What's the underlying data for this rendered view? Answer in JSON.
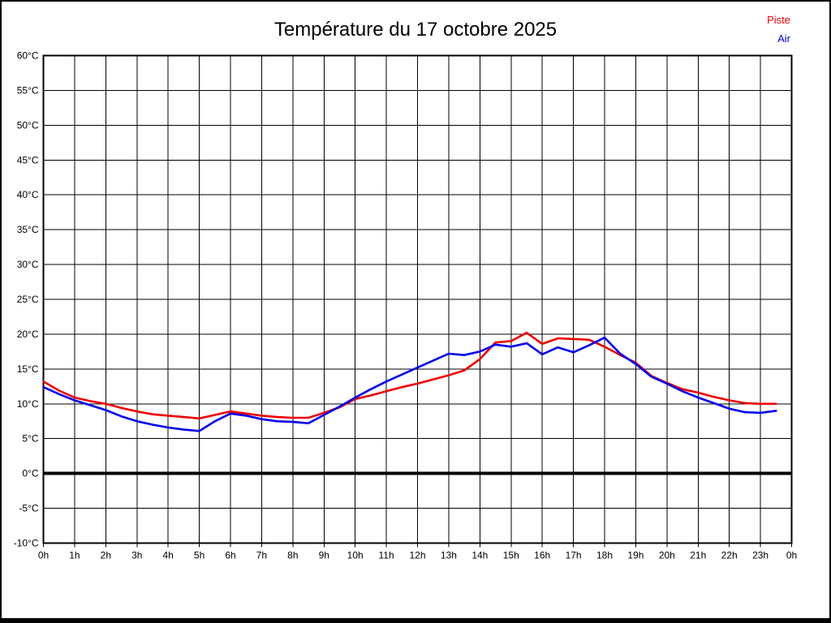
{
  "page": {
    "background": "#ffffff",
    "frame_color": "#000000"
  },
  "chart_data": {
    "type": "line",
    "title": "Température du 17 octobre 2025",
    "xlabel": "",
    "ylabel": "",
    "xlim": [
      0,
      24
    ],
    "ylim": [
      -10,
      60
    ],
    "grid": true,
    "grid_color": "#000000",
    "zero_line_value": 0,
    "legend_position": "top-right",
    "x_tick_labels": [
      "0h",
      "1h",
      "2h",
      "3h",
      "4h",
      "5h",
      "6h",
      "7h",
      "8h",
      "9h",
      "10h",
      "11h",
      "12h",
      "13h",
      "14h",
      "15h",
      "16h",
      "17h",
      "18h",
      "19h",
      "20h",
      "21h",
      "22h",
      "23h",
      "0h"
    ],
    "y_tick_values": [
      60,
      55,
      50,
      45,
      40,
      35,
      30,
      25,
      20,
      15,
      10,
      5,
      0,
      -5,
      -10
    ],
    "y_tick_labels": [
      "60°C",
      "55°C",
      "50°C",
      "45°C",
      "40°C",
      "35°C",
      "30°C",
      "25°C",
      "20°C",
      "15°C",
      "10°C",
      "5°C",
      "0°C",
      "-5°C",
      "-10°C"
    ],
    "x": [
      0,
      0.5,
      1,
      1.5,
      2,
      2.5,
      3,
      3.5,
      4,
      4.5,
      5,
      5.5,
      6,
      6.5,
      7,
      7.5,
      8,
      8.5,
      9,
      9.5,
      10,
      10.5,
      11,
      11.5,
      12,
      12.5,
      13,
      13.5,
      14,
      14.5,
      15,
      15.5,
      16,
      16.5,
      17,
      17.5,
      18,
      18.5,
      19,
      19.5,
      20,
      20.5,
      21,
      21.5,
      22,
      22.5,
      23,
      23.5
    ],
    "series": [
      {
        "name": "Piste",
        "color": "#ee0000",
        "values": [
          13.2,
          11.9,
          10.9,
          10.4,
          10.0,
          9.4,
          8.9,
          8.5,
          8.3,
          8.1,
          7.9,
          8.4,
          8.9,
          8.6,
          8.3,
          8.1,
          8.0,
          8.0,
          8.7,
          9.5,
          10.7,
          11.2,
          11.8,
          12.4,
          12.9,
          13.5,
          14.1,
          14.8,
          16.4,
          18.8,
          19.0,
          20.2,
          18.6,
          19.4,
          19.3,
          19.2,
          18.2,
          17.0,
          15.9,
          14.0,
          13.0,
          12.1,
          11.6,
          11.0,
          10.5,
          10.1,
          10.0,
          10.0
        ]
      },
      {
        "name": "Air",
        "color": "#0000ee",
        "values": [
          12.4,
          11.4,
          10.5,
          9.8,
          9.1,
          8.2,
          7.5,
          7.0,
          6.6,
          6.3,
          6.1,
          7.5,
          8.6,
          8.3,
          7.8,
          7.5,
          7.4,
          7.2,
          8.4,
          9.6,
          10.9,
          12.1,
          13.2,
          14.2,
          15.2,
          16.2,
          17.2,
          17.0,
          17.5,
          18.5,
          18.2,
          18.7,
          17.1,
          18.1,
          17.4,
          18.4,
          19.5,
          17.2,
          15.7,
          13.9,
          12.9,
          11.8,
          10.9,
          10.1,
          9.3,
          8.8,
          8.7,
          9.0
        ]
      }
    ]
  }
}
